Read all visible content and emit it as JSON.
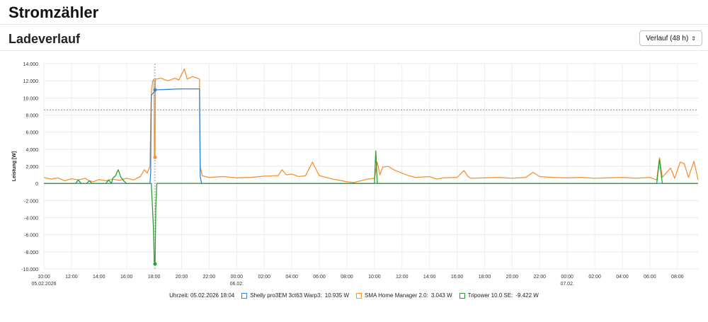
{
  "page_title": "Stromzähler",
  "card": {
    "title": "Ladeverlauf",
    "select_value": "Verlauf (48 h)"
  },
  "legend": {
    "time_label": "Uhrzeit:",
    "time_value": "05.02.2026 18:04",
    "series": [
      {
        "name": "Shelly pro3EM 3ct63 Warp3:",
        "value": "10.935 W",
        "color": "#2e86de"
      },
      {
        "name": "SMA Home Manager 2.0:",
        "value": "3.043 W",
        "color": "#f39237"
      },
      {
        "name": "Tripower 10.0 SE:",
        "value": "-9.422 W",
        "color": "#2ca02c"
      }
    ]
  },
  "chart_data": {
    "type": "line",
    "ylabel": "Leistung [W]",
    "ylim": [
      -10000,
      14000
    ],
    "yticks": [
      14000,
      12000,
      10000,
      8000,
      6000,
      4000,
      2000,
      0,
      -2000,
      -4000,
      -6000,
      -8000,
      -10000
    ],
    "ytick_labels": [
      "14.000",
      "12.000",
      "10.000",
      "8.000",
      "6.000",
      "4.000",
      "2.000",
      "0",
      "-2.000",
      "-4.000",
      "-6.000",
      "-8.000",
      "-10.000"
    ],
    "xlim": [
      10,
      57.5
    ],
    "xticks": [
      10,
      12,
      14,
      16,
      18,
      20,
      22,
      24,
      26,
      28,
      30,
      32,
      34,
      36,
      38,
      40,
      42,
      44,
      46,
      48,
      50,
      52,
      54,
      56
    ],
    "xtick_labels": [
      "10:00",
      "12:00",
      "14:00",
      "16:00",
      "18:00",
      "20:00",
      "22:00",
      "00:00",
      "02:00",
      "04:00",
      "06:00",
      "08:00",
      "10:00",
      "12:00",
      "14:00",
      "16:00",
      "18:00",
      "20:00",
      "22:00",
      "00:00",
      "02:00",
      "04:00",
      "06:00",
      "08:00"
    ],
    "xtick_sublabels": {
      "10": "05.02.2026",
      "24": "06.02.",
      "48": "07.02."
    },
    "threshold": 8600,
    "cursor_x": 18.07,
    "series": [
      {
        "name": "Shelly pro3EM 3ct63 Warp3",
        "color": "#2e86de",
        "points": [
          [
            10,
            0
          ],
          [
            17.7,
            0
          ],
          [
            17.75,
            1200
          ],
          [
            17.8,
            10300
          ],
          [
            18.0,
            10700
          ],
          [
            18.07,
            10935
          ],
          [
            19,
            11000
          ],
          [
            20,
            11050
          ],
          [
            21.3,
            11050
          ],
          [
            21.35,
            800
          ],
          [
            21.45,
            0
          ],
          [
            57.5,
            0
          ]
        ]
      },
      {
        "name": "SMA Home Manager 2.0",
        "color": "#f39237",
        "points": [
          [
            10,
            700
          ],
          [
            10.5,
            500
          ],
          [
            11,
            650
          ],
          [
            11.5,
            300
          ],
          [
            12,
            550
          ],
          [
            12.5,
            400
          ],
          [
            13,
            600
          ],
          [
            13.3,
            300
          ],
          [
            13.6,
            200
          ],
          [
            14,
            450
          ],
          [
            14.5,
            300
          ],
          [
            15,
            500
          ],
          [
            15.5,
            350
          ],
          [
            16,
            600
          ],
          [
            16.5,
            400
          ],
          [
            17,
            800
          ],
          [
            17.3,
            1600
          ],
          [
            17.5,
            1200
          ],
          [
            17.7,
            2000
          ],
          [
            17.8,
            10500
          ],
          [
            17.9,
            12000
          ],
          [
            18.0,
            12200
          ],
          [
            18.02,
            3043
          ],
          [
            18.07,
            3043
          ],
          [
            18.1,
            12200
          ],
          [
            18.5,
            12300
          ],
          [
            19,
            12000
          ],
          [
            19.5,
            12300
          ],
          [
            19.8,
            12100
          ],
          [
            20.2,
            13400
          ],
          [
            20.4,
            12200
          ],
          [
            20.8,
            12500
          ],
          [
            21.3,
            12200
          ],
          [
            21.35,
            2000
          ],
          [
            21.5,
            900
          ],
          [
            22,
            700
          ],
          [
            23,
            800
          ],
          [
            24,
            650
          ],
          [
            25,
            700
          ],
          [
            26,
            850
          ],
          [
            27,
            900
          ],
          [
            27.3,
            1600
          ],
          [
            27.6,
            1000
          ],
          [
            28,
            1100
          ],
          [
            28.5,
            800
          ],
          [
            29,
            900
          ],
          [
            29.5,
            2500
          ],
          [
            29.8,
            1500
          ],
          [
            30,
            900
          ],
          [
            30.5,
            700
          ],
          [
            31,
            500
          ],
          [
            32,
            200
          ],
          [
            32.5,
            100
          ],
          [
            33,
            300
          ],
          [
            33.5,
            500
          ],
          [
            34,
            600
          ],
          [
            34.2,
            2500
          ],
          [
            34.4,
            1000
          ],
          [
            34.6,
            1900
          ],
          [
            35,
            2000
          ],
          [
            35.4,
            1600
          ],
          [
            36,
            1200
          ],
          [
            36.5,
            900
          ],
          [
            37,
            700
          ],
          [
            38,
            800
          ],
          [
            38.5,
            500
          ],
          [
            39,
            650
          ],
          [
            40,
            700
          ],
          [
            40.5,
            1500
          ],
          [
            40.8,
            800
          ],
          [
            41,
            600
          ],
          [
            42,
            650
          ],
          [
            43,
            700
          ],
          [
            44,
            600
          ],
          [
            45,
            700
          ],
          [
            45.5,
            1300
          ],
          [
            46,
            800
          ],
          [
            47,
            700
          ],
          [
            48,
            650
          ],
          [
            49,
            700
          ],
          [
            50,
            600
          ],
          [
            51,
            650
          ],
          [
            52,
            700
          ],
          [
            53,
            600
          ],
          [
            54,
            700
          ],
          [
            54.5,
            400
          ],
          [
            54.7,
            3000
          ],
          [
            54.9,
            700
          ],
          [
            55.5,
            1800
          ],
          [
            55.8,
            600
          ],
          [
            56.2,
            2500
          ],
          [
            56.5,
            2300
          ],
          [
            56.8,
            700
          ],
          [
            57.2,
            2600
          ],
          [
            57.5,
            400
          ]
        ]
      },
      {
        "name": "Tripower 10.0 SE",
        "color": "#2ca02c",
        "points": [
          [
            10,
            0
          ],
          [
            12.3,
            0
          ],
          [
            12.5,
            400
          ],
          [
            12.7,
            0
          ],
          [
            13.1,
            0
          ],
          [
            13.3,
            300
          ],
          [
            13.5,
            0
          ],
          [
            14.5,
            0
          ],
          [
            14.7,
            400
          ],
          [
            14.9,
            0
          ],
          [
            15,
            600
          ],
          [
            15.2,
            900
          ],
          [
            15.4,
            1600
          ],
          [
            15.6,
            700
          ],
          [
            15.8,
            300
          ],
          [
            16,
            0
          ],
          [
            17.8,
            0
          ],
          [
            17.95,
            -5000
          ],
          [
            18.02,
            -9422
          ],
          [
            18.07,
            -9422
          ],
          [
            18.12,
            -3000
          ],
          [
            18.2,
            0
          ],
          [
            34.0,
            0
          ],
          [
            34.1,
            3800
          ],
          [
            34.2,
            0
          ],
          [
            54.5,
            0
          ],
          [
            54.7,
            2800
          ],
          [
            54.9,
            0
          ],
          [
            57.5,
            0
          ]
        ]
      }
    ],
    "markers": [
      {
        "series": "Shelly pro3EM 3ct63 Warp3",
        "x": 18.07,
        "y": 10935
      },
      {
        "series": "SMA Home Manager 2.0",
        "x": 18.07,
        "y": 3043
      },
      {
        "series": "Tripower 10.0 SE",
        "x": 18.07,
        "y": -9422
      }
    ]
  }
}
